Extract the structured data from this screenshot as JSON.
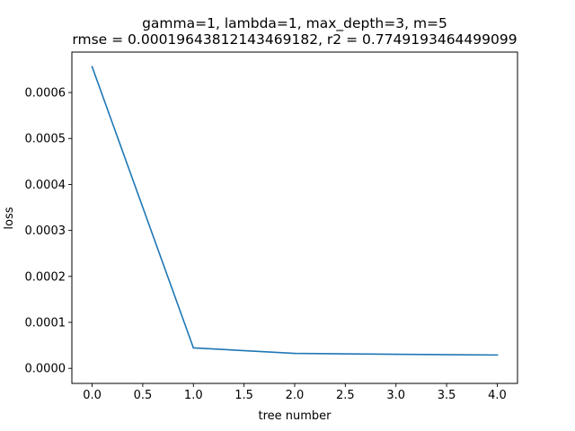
{
  "chart_data": {
    "type": "line",
    "title": "gamma=1, lambda=1, max_depth=3, m=5",
    "subtitle": "rmse = 0.00019643812143469182, r2 = 0.7749193464499099",
    "xlabel": "tree number",
    "ylabel": "loss",
    "xlim": [
      -0.2,
      4.2
    ],
    "ylim": [
      -3.28e-05,
      0.000688
    ],
    "xticks": [
      "0.0",
      "0.5",
      "1.0",
      "1.5",
      "2.0",
      "2.5",
      "3.0",
      "3.5",
      "4.0"
    ],
    "yticks": [
      "0.0000",
      "0.0001",
      "0.0002",
      "0.0003",
      "0.0004",
      "0.0005",
      "0.0006"
    ],
    "grid": false,
    "series": [
      {
        "color": "#1f77b4",
        "x": [
          0,
          1,
          2,
          3,
          4
        ],
        "y": [
          0.000656,
          4.45e-05,
          3.25e-05,
          3.05e-05,
          2.9e-05
        ]
      }
    ]
  }
}
